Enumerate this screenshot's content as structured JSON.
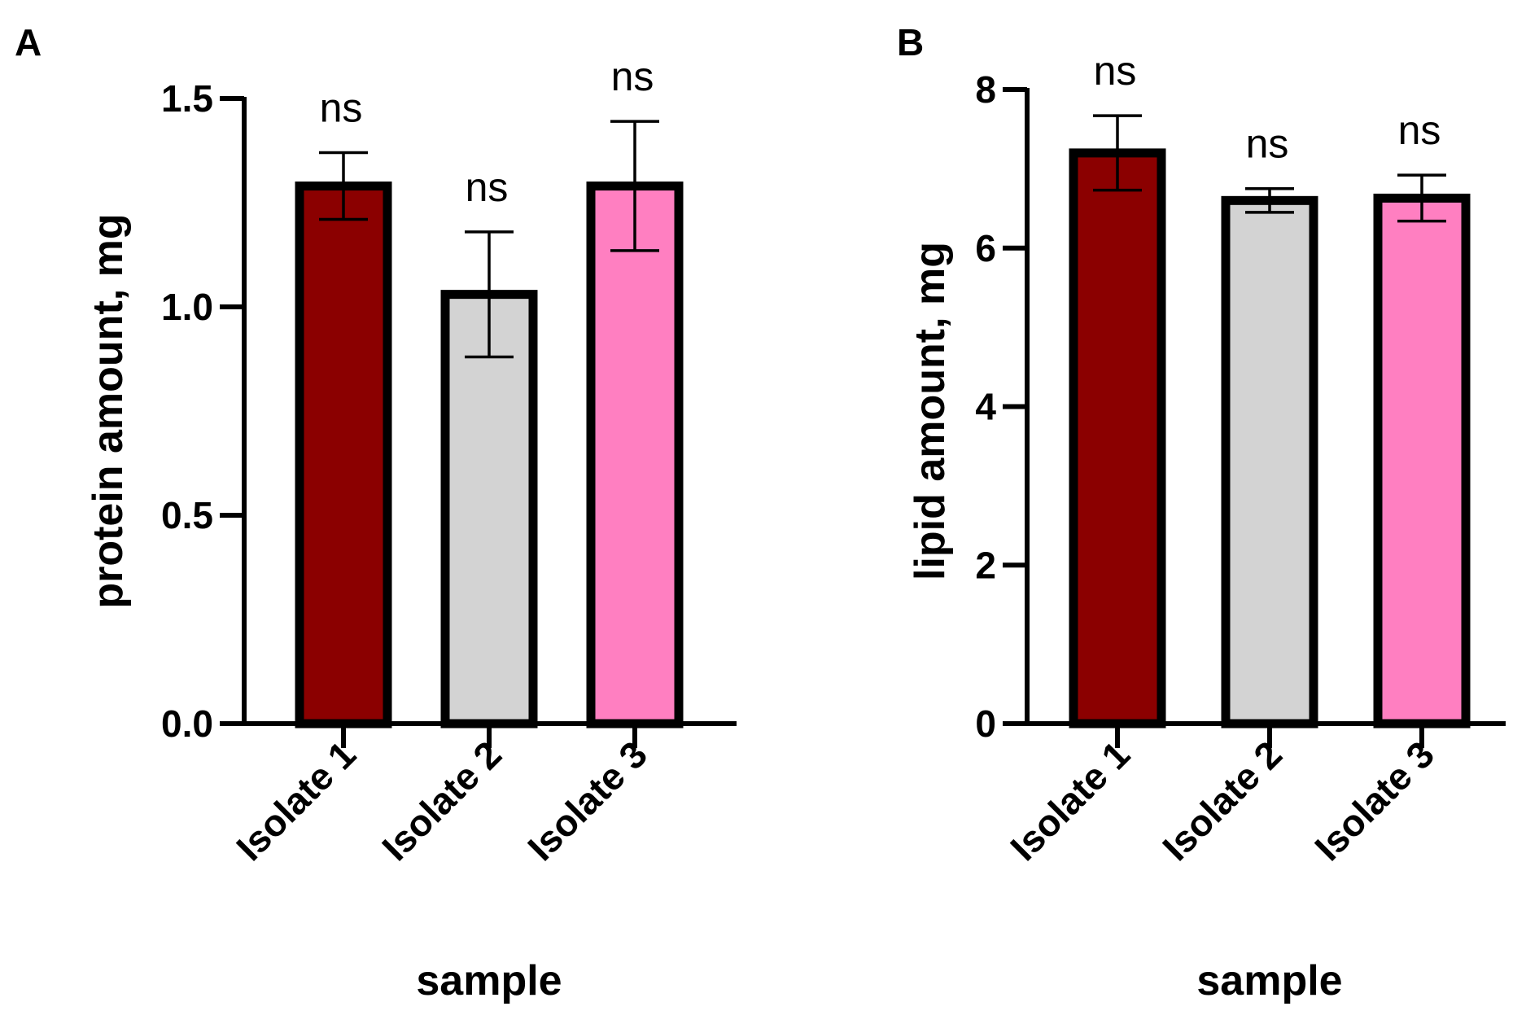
{
  "chart_data": [
    {
      "panel": "A",
      "type": "bar",
      "title": "",
      "xlabel": "sample",
      "ylabel": "protein amount, mg",
      "categories": [
        "Isolate 1",
        "Isolate 2",
        "Isolate 3"
      ],
      "values": [
        1.29,
        1.03,
        1.29
      ],
      "errors": [
        0.08,
        0.15,
        0.155
      ],
      "annotations": [
        "ns",
        "ns",
        "ns"
      ],
      "colors": [
        "#8b0000",
        "#d3d3d3",
        "#ff7fc1"
      ],
      "ylim": [
        0,
        1.5
      ],
      "yticks": [
        0.0,
        0.5,
        1.0,
        1.5
      ],
      "ytick_labels": [
        "0.0",
        "0.5",
        "1.0",
        "1.5"
      ]
    },
    {
      "panel": "B",
      "type": "bar",
      "title": "",
      "xlabel": "sample",
      "ylabel": "lipid amount, mg",
      "categories": [
        "Isolate 1",
        "Isolate 2",
        "Isolate 3"
      ],
      "values": [
        7.2,
        6.6,
        6.63
      ],
      "errors": [
        0.47,
        0.15,
        0.29
      ],
      "annotations": [
        "ns",
        "ns",
        "ns"
      ],
      "colors": [
        "#8b0000",
        "#d3d3d3",
        "#ff7fc1"
      ],
      "ylim": [
        0,
        8
      ],
      "yticks": [
        0,
        2,
        4,
        6,
        8
      ],
      "ytick_labels": [
        "0",
        "2",
        "4",
        "6",
        "8"
      ]
    }
  ]
}
